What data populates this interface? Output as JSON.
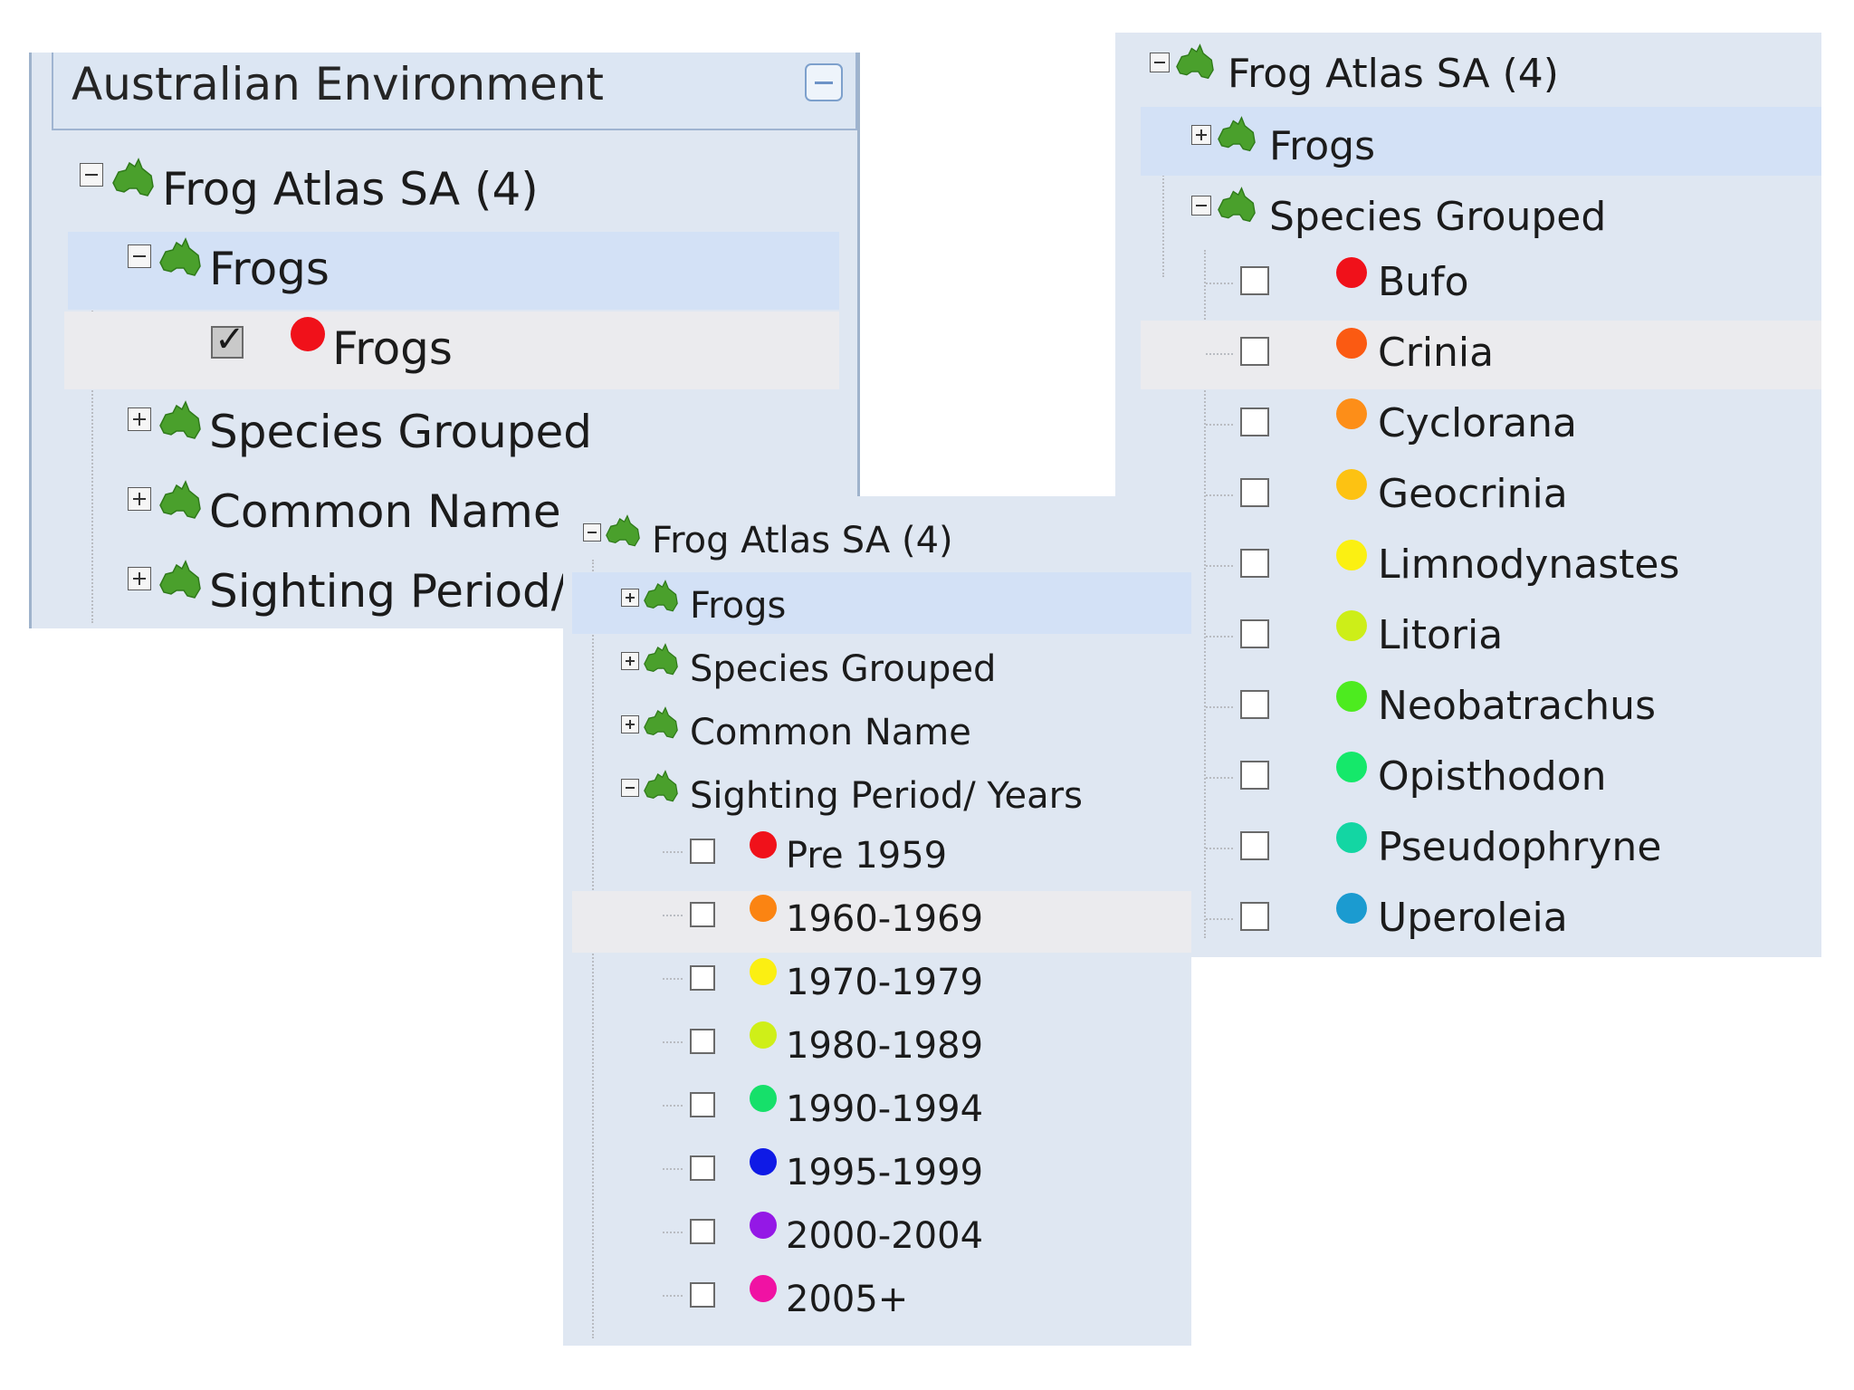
{
  "panel_a": {
    "title": "Australian Environment",
    "root": {
      "label": "Frog Atlas SA",
      "count": "(4)"
    },
    "items": [
      {
        "label": "Frogs"
      },
      {
        "label": "Frogs",
        "checked": true,
        "color": "#f0111a"
      },
      {
        "label": "Species Grouped"
      },
      {
        "label": "Common Name"
      },
      {
        "label": "Sighting Period/"
      }
    ]
  },
  "panel_b": {
    "root": {
      "label": "Frog Atlas SA",
      "count": "(4)"
    },
    "groups": [
      {
        "label": "Frogs"
      },
      {
        "label": "Species Grouped"
      }
    ],
    "species": [
      {
        "label": "Bufo",
        "color": "#f0111a"
      },
      {
        "label": "Crinia",
        "color": "#fb5a12"
      },
      {
        "label": "Cyclorana",
        "color": "#fd8e18"
      },
      {
        "label": "Geocrinia",
        "color": "#fdc212"
      },
      {
        "label": "Limnodynastes",
        "color": "#fbf012"
      },
      {
        "label": "Litoria",
        "color": "#cdee18"
      },
      {
        "label": "Neobatrachus",
        "color": "#4deb1f"
      },
      {
        "label": "Opisthodon",
        "color": "#15e86a"
      },
      {
        "label": "Pseudophryne",
        "color": "#13d6a3"
      },
      {
        "label": "Uperoleia",
        "color": "#1b9bd0"
      }
    ]
  },
  "panel_c": {
    "root": {
      "label": "Frog Atlas SA",
      "count": "(4)"
    },
    "groups": [
      {
        "label": "Frogs"
      },
      {
        "label": "Species Grouped"
      },
      {
        "label": "Common Name"
      },
      {
        "label": "Sighting Period/ Years"
      }
    ],
    "periods": [
      {
        "label": "Pre 1959",
        "color": "#f0111a"
      },
      {
        "label": "1960-1969",
        "color": "#fb8412"
      },
      {
        "label": "1970-1979",
        "color": "#fbef12"
      },
      {
        "label": "1980-1989",
        "color": "#cfef18"
      },
      {
        "label": "1990-1994",
        "color": "#16e06a"
      },
      {
        "label": "1995-1999",
        "color": "#0f1ae6"
      },
      {
        "label": "2000-2004",
        "color": "#9418e6"
      },
      {
        "label": "2005+",
        "color": "#f012a3"
      }
    ]
  }
}
